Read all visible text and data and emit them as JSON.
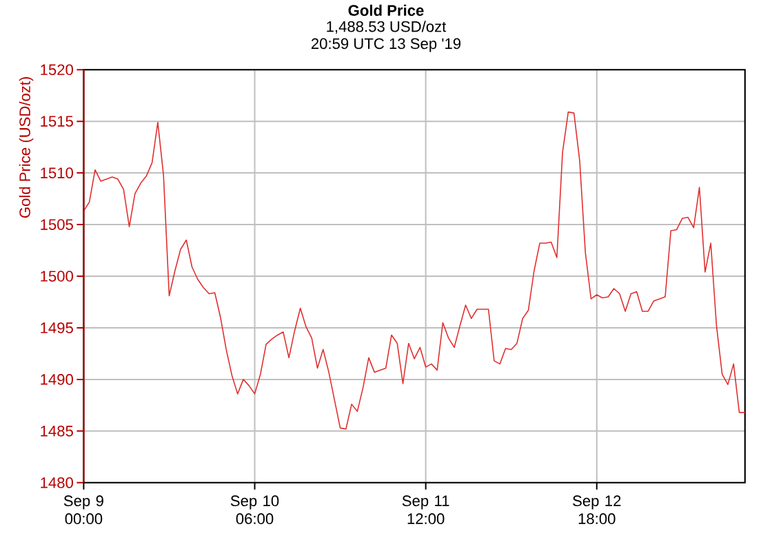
{
  "chart_data": {
    "type": "line",
    "title": "Gold Price",
    "subtitle": "1,488.53 USD/ozt",
    "annotations": [
      "20:59 UTC 13 Sep '19"
    ],
    "ylabel": "Gold Price (USD/ozt)",
    "x": [
      "2019-09-09T00:00",
      "2019-09-09T01:00",
      "2019-09-09T02:00",
      "2019-09-09T03:00",
      "2019-09-09T04:00",
      "2019-09-09T05:00",
      "2019-09-09T06:00",
      "2019-09-09T07:00",
      "2019-09-09T08:00",
      "2019-09-09T09:00",
      "2019-09-09T10:00",
      "2019-09-09T11:00",
      "2019-09-09T12:00",
      "2019-09-09T13:00",
      "2019-09-09T14:00",
      "2019-09-09T15:00",
      "2019-09-09T16:00",
      "2019-09-09T17:00",
      "2019-09-09T18:00",
      "2019-09-09T19:00",
      "2019-09-09T20:00",
      "2019-09-09T21:00",
      "2019-09-09T22:00",
      "2019-09-09T23:00",
      "2019-09-10T00:00",
      "2019-09-10T01:00",
      "2019-09-10T02:00",
      "2019-09-10T03:00",
      "2019-09-10T04:00",
      "2019-09-10T05:00",
      "2019-09-10T06:00",
      "2019-09-10T07:00",
      "2019-09-10T08:00",
      "2019-09-10T09:00",
      "2019-09-10T10:00",
      "2019-09-10T11:00",
      "2019-09-10T12:00",
      "2019-09-10T13:00",
      "2019-09-10T14:00",
      "2019-09-10T15:00",
      "2019-09-10T16:00",
      "2019-09-10T17:00",
      "2019-09-10T18:00",
      "2019-09-10T19:00",
      "2019-09-10T20:00",
      "2019-09-10T21:00",
      "2019-09-10T22:00",
      "2019-09-10T23:00",
      "2019-09-11T00:00",
      "2019-09-11T01:00",
      "2019-09-11T02:00",
      "2019-09-11T03:00",
      "2019-09-11T04:00",
      "2019-09-11T05:00",
      "2019-09-11T06:00",
      "2019-09-11T07:00",
      "2019-09-11T08:00",
      "2019-09-11T09:00",
      "2019-09-11T10:00",
      "2019-09-11T11:00",
      "2019-09-11T12:00",
      "2019-09-11T13:00",
      "2019-09-11T14:00",
      "2019-09-11T15:00",
      "2019-09-11T16:00",
      "2019-09-11T17:00",
      "2019-09-11T18:00",
      "2019-09-11T19:00",
      "2019-09-11T20:00",
      "2019-09-11T21:00",
      "2019-09-11T22:00",
      "2019-09-11T23:00",
      "2019-09-12T00:00",
      "2019-09-12T01:00",
      "2019-09-12T02:00",
      "2019-09-12T03:00",
      "2019-09-12T04:00",
      "2019-09-12T05:00",
      "2019-09-12T06:00",
      "2019-09-12T07:00",
      "2019-09-12T08:00",
      "2019-09-12T09:00",
      "2019-09-12T10:00",
      "2019-09-12T11:00",
      "2019-09-12T12:00",
      "2019-09-12T13:00",
      "2019-09-12T14:00",
      "2019-09-12T15:00",
      "2019-09-12T16:00",
      "2019-09-12T17:00",
      "2019-09-12T18:00",
      "2019-09-12T19:00",
      "2019-09-12T20:00",
      "2019-09-12T21:00",
      "2019-09-12T22:00",
      "2019-09-12T23:00",
      "2019-09-13T00:00",
      "2019-09-13T01:00",
      "2019-09-13T02:00",
      "2019-09-13T03:00",
      "2019-09-13T04:00",
      "2019-09-13T05:00",
      "2019-09-13T06:00",
      "2019-09-13T07:00",
      "2019-09-13T08:00",
      "2019-09-13T09:00",
      "2019-09-13T10:00",
      "2019-09-13T11:00",
      "2019-09-13T12:00",
      "2019-09-13T13:00",
      "2019-09-13T14:00",
      "2019-09-13T15:00",
      "2019-09-13T16:00",
      "2019-09-13T17:00",
      "2019-09-13T18:00",
      "2019-09-13T19:00",
      "2019-09-13T20:00"
    ],
    "series": [
      {
        "color": "#e03030",
        "values": [
          1506.3,
          1507.2,
          1510.3,
          1509.2,
          1509.4,
          1509.6,
          1509.4,
          1508.4,
          1504.8,
          1508.0,
          1509.0,
          1509.7,
          1511.0,
          1514.9,
          1509.8,
          1498.1,
          1500.5,
          1502.6,
          1503.5,
          1500.9,
          1499.7,
          1498.9,
          1498.3,
          1498.4,
          1496.0,
          1492.9,
          1490.4,
          1488.6,
          1490.0,
          1489.4,
          1488.6,
          1490.5,
          1493.4,
          1493.9,
          1494.3,
          1494.6,
          1492.1,
          1494.7,
          1496.9,
          1495.1,
          1494.0,
          1491.1,
          1492.9,
          1490.7,
          1488.0,
          1485.3,
          1485.2,
          1487.6,
          1486.9,
          1489.2,
          1492.1,
          1490.7,
          1490.9,
          1491.1,
          1494.3,
          1493.5,
          1489.6,
          1493.5,
          1492.0,
          1493.1,
          1491.2,
          1491.5,
          1490.9,
          1495.5,
          1494.0,
          1493.1,
          1495.2,
          1497.2,
          1495.9,
          1496.8,
          1496.8,
          1496.8,
          1491.8,
          1491.5,
          1493.0,
          1492.9,
          1493.5,
          1495.9,
          1496.7,
          1500.5,
          1503.2,
          1503.2,
          1503.3,
          1501.8,
          1512.0,
          1515.9,
          1515.8,
          1511.2,
          1502.3,
          1497.8,
          1498.2,
          1497.9,
          1498.0,
          1498.8,
          1498.3,
          1496.6,
          1498.3,
          1498.5,
          1496.6,
          1496.6,
          1497.6,
          1497.8,
          1498.0,
          1504.4,
          1504.5,
          1505.6,
          1505.7,
          1504.7,
          1508.6,
          1500.4,
          1503.2,
          1495.2,
          1490.5,
          1489.5,
          1491.5,
          1486.8,
          1486.8
        ]
      }
    ],
    "xlim": [
      "2019-09-09T00:00",
      "2019-09-13T20:00"
    ],
    "xticks": [
      {
        "value": "2019-09-09T00:00",
        "label": "Sep 9 00:00"
      },
      {
        "value": "2019-09-10T06:00",
        "label": "Sep 10 06:00"
      },
      {
        "value": "2019-09-11T12:00",
        "label": "Sep 11 12:00"
      },
      {
        "value": "2019-09-12T18:00",
        "label": "Sep 12 18:00"
      }
    ],
    "ylim": [
      1480,
      1520
    ],
    "yticks": [
      1480,
      1485,
      1490,
      1495,
      1500,
      1505,
      1510,
      1515,
      1520
    ],
    "grid": true,
    "marker": "none",
    "line_style": "solid"
  }
}
